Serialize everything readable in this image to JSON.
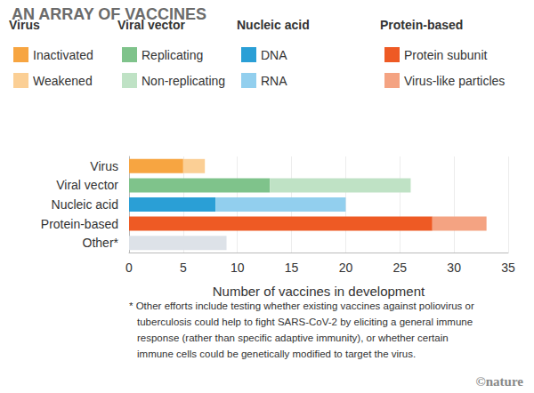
{
  "chart_data": {
    "type": "bar",
    "title": "AN ARRAY OF VACCINES",
    "orientation": "horizontal",
    "stacked": true,
    "grid": true,
    "legend": "top",
    "categories": [
      "Virus",
      "Viral vector",
      "Nucleic acid",
      "Protein-based",
      "Other*"
    ],
    "series": [
      {
        "name": "Inactivated",
        "group": "Virus",
        "color": "#f7a541",
        "values": [
          5,
          null,
          null,
          null,
          null
        ]
      },
      {
        "name": "Weakened",
        "group": "Virus",
        "color": "#fbcf95",
        "values": [
          2,
          null,
          null,
          null,
          null
        ]
      },
      {
        "name": "Replicating",
        "group": "Viral vector",
        "color": "#7fc38b",
        "values": [
          null,
          13,
          null,
          null,
          null
        ]
      },
      {
        "name": "Non-replicating",
        "group": "Viral vector",
        "color": "#bfe2c5",
        "values": [
          null,
          13,
          null,
          null,
          null
        ]
      },
      {
        "name": "DNA",
        "group": "Nucleic acid",
        "color": "#2a9fd6",
        "values": [
          null,
          null,
          8,
          null,
          null
        ]
      },
      {
        "name": "RNA",
        "group": "Nucleic acid",
        "color": "#92cfee",
        "values": [
          null,
          null,
          12,
          null,
          null
        ]
      },
      {
        "name": "Protein subunit",
        "group": "Protein-based",
        "color": "#ee5a24",
        "values": [
          null,
          null,
          null,
          28,
          null
        ]
      },
      {
        "name": "Virus-like particles",
        "group": "Protein-based",
        "color": "#f4a382",
        "values": [
          null,
          null,
          null,
          5,
          null
        ]
      },
      {
        "color": "#dde2e8",
        "values": [
          null,
          null,
          null,
          null,
          9
        ]
      }
    ],
    "x_label": "Number of vaccines in development",
    "xlim": [
      0,
      35
    ],
    "xticks": [
      0,
      5,
      10,
      15,
      20,
      25,
      30,
      35
    ],
    "footnote": [
      "* Other efforts include testing whether existing vaccines against poliovirus or",
      "tuberculosis could help to fight SARS-CoV-2 by eliciting a general immune",
      "response (rather than specific adaptive immunity), or whether certain",
      "immune cells could be genetically modified to target the virus."
    ],
    "credit": "©nature"
  }
}
